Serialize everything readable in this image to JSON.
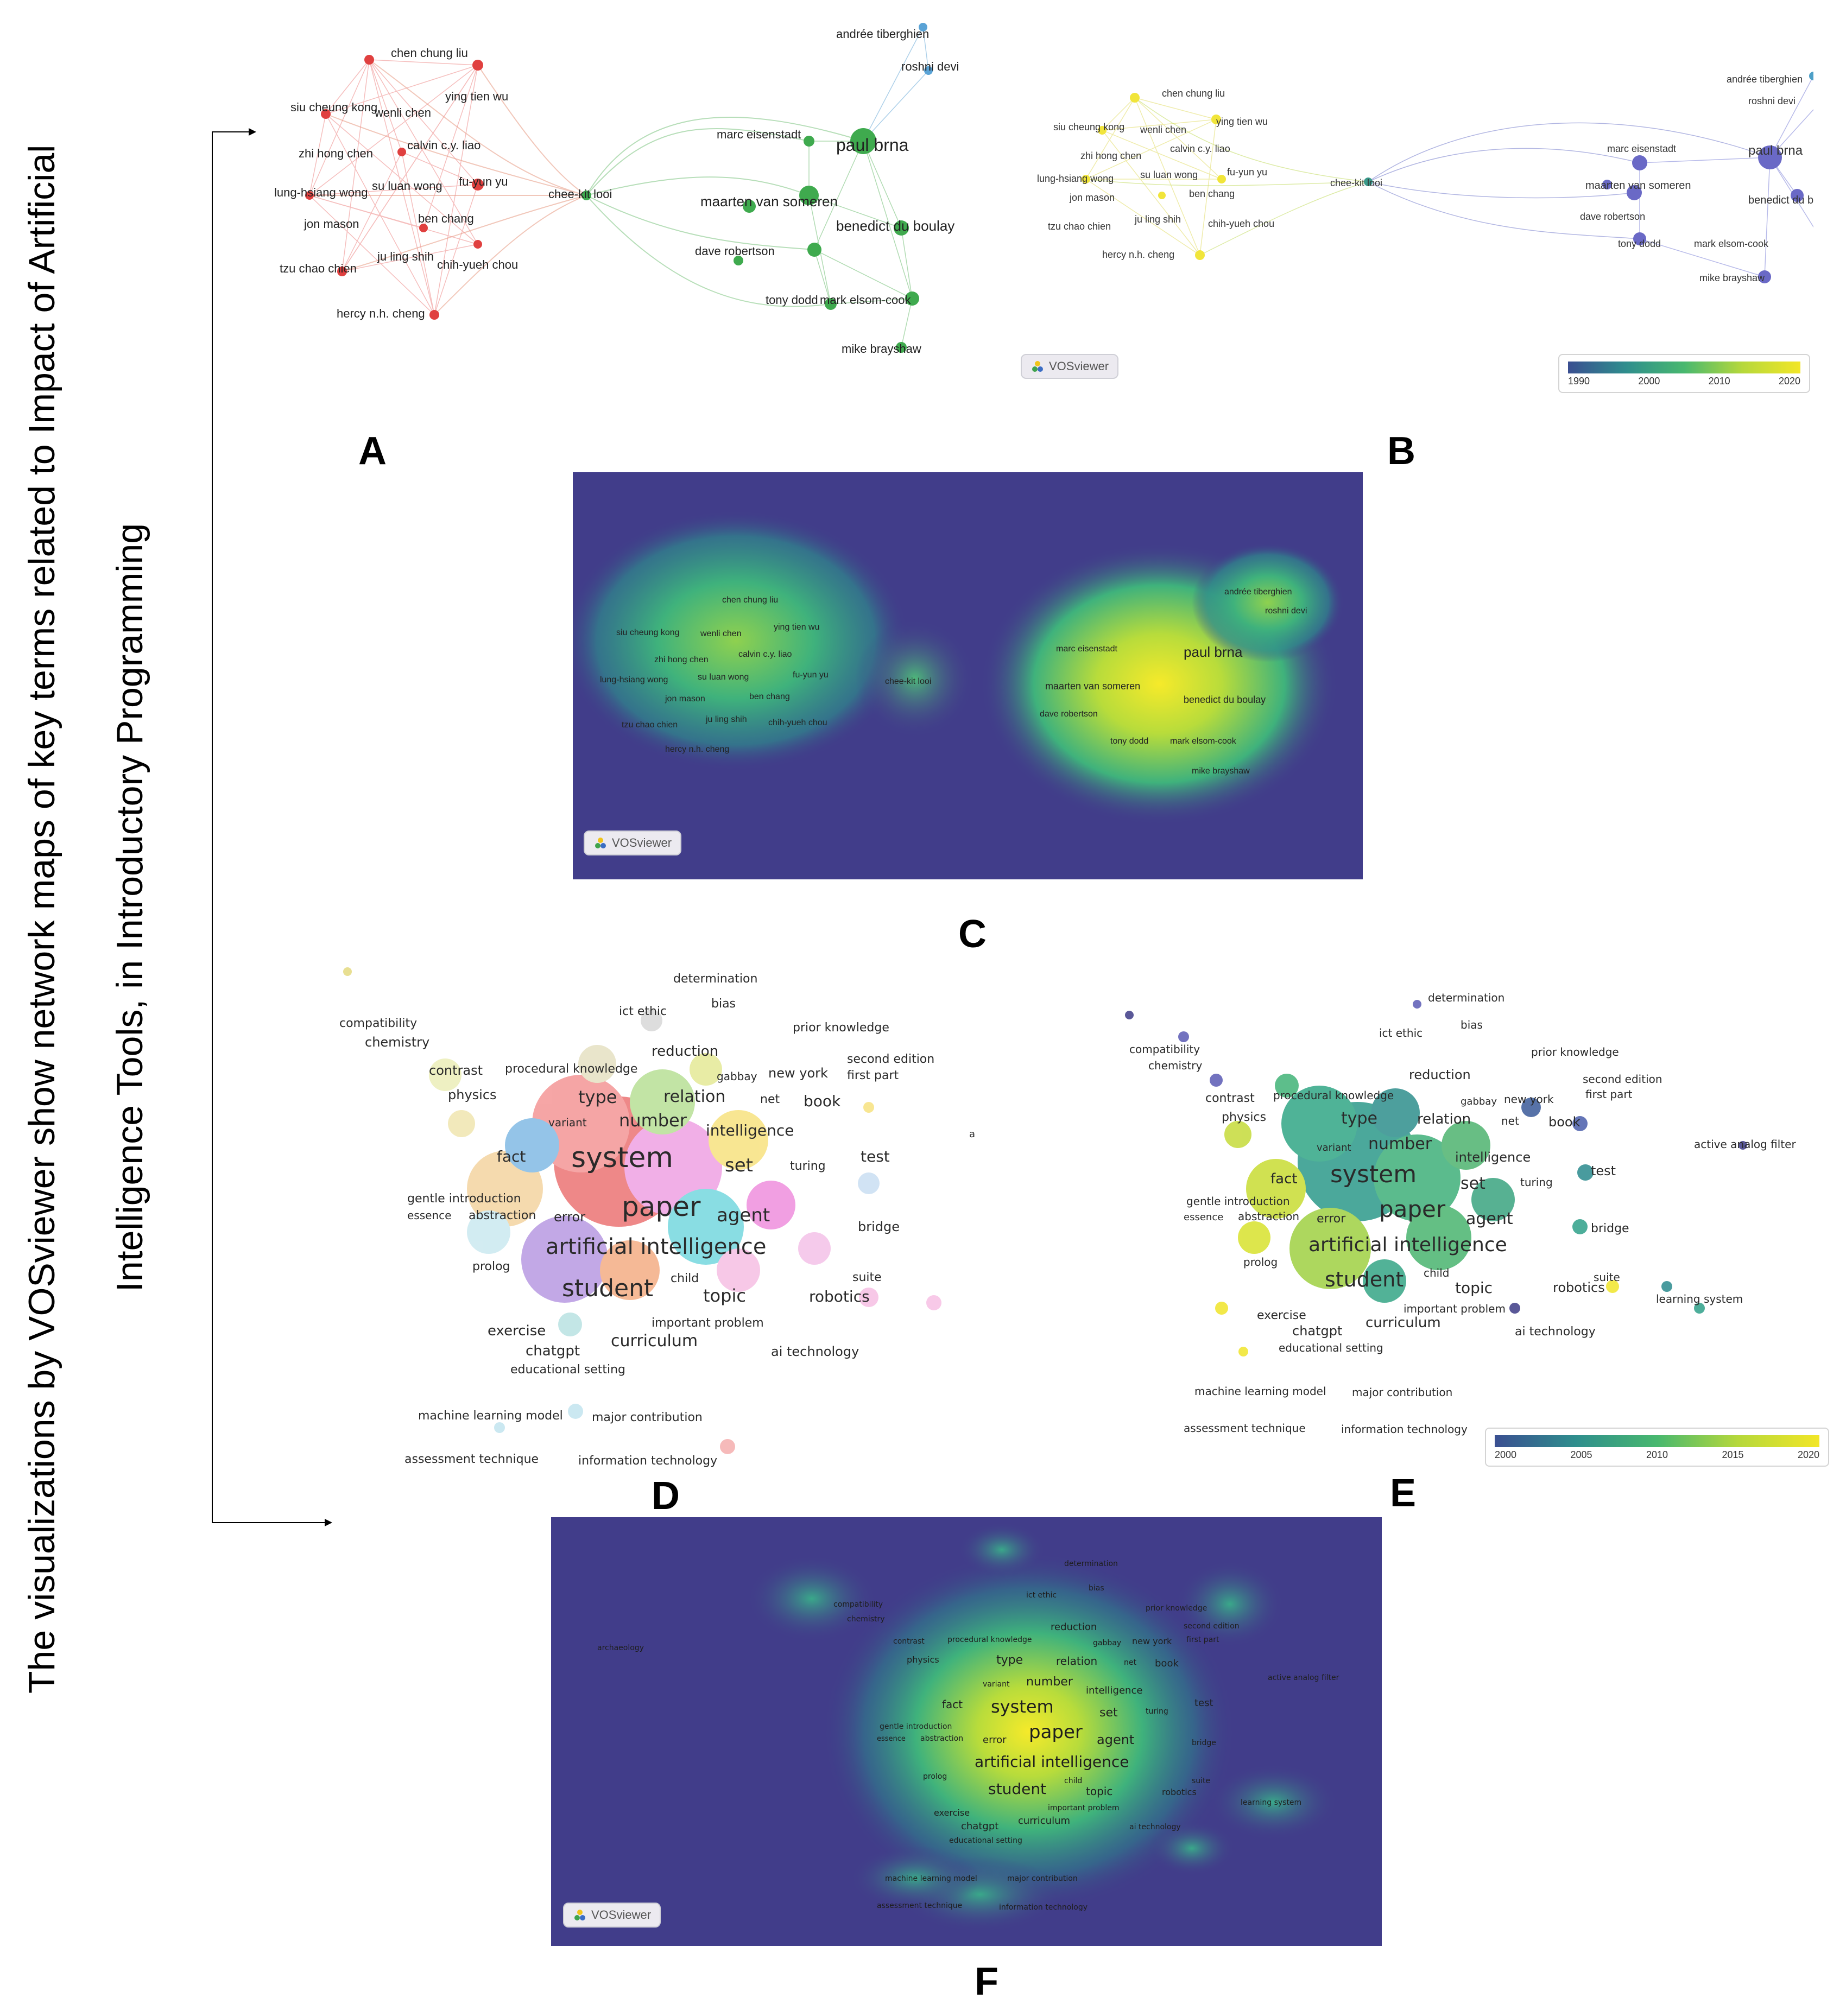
{
  "figure": {
    "title_line1": "The  visualizations by VOSviewer show network maps of key terms related to Impact of Artificial",
    "title_line2": "Intelligence Tools, in Introductory Programming"
  },
  "panel_labels": {
    "a": "A",
    "b": "B",
    "c": "C",
    "d": "D",
    "e": "E",
    "f": "F"
  },
  "vosviewer_badge": "VOSviewer",
  "colors": {
    "cluster_red": "#e8605f",
    "cluster_green": "#3faa4e",
    "cluster_blue": "#5aa3d6",
    "overlay_yellow": "#f2e627",
    "overlay_purple": "#6a69c6",
    "density_bg": "#413d8a"
  },
  "author_map": {
    "nodes": [
      "chen chung liu",
      "siu cheung kong",
      "wenli chen",
      "ying tien wu",
      "zhi hong chen",
      "calvin c.y. liao",
      "lung-hsiang wong",
      "su luan wong",
      "fu-yun yu",
      "jon mason",
      "ben chang",
      "tzu chao chien",
      "ju ling shih",
      "chih-yueh chou",
      "hercy n.h. cheng",
      "chee-kit looi",
      "marc eisenstadt",
      "paul brna",
      "maarten van someren",
      "benedict du boulay",
      "dave robertson",
      "tony dodd",
      "mark elsom-cook",
      "mike brayshaw",
      "andrée tiberghien",
      "roshni devi"
    ]
  },
  "overlay_b_legend": {
    "ticks": [
      "1990",
      "2000",
      "2010",
      "2020"
    ]
  },
  "overlay_e_legend": {
    "ticks": [
      "2000",
      "2005",
      "2010",
      "2015",
      "2020"
    ]
  },
  "term_map": {
    "terms": [
      "determination",
      "bias",
      "ict ethic",
      "compatibility",
      "chemistry",
      "prior knowledge",
      "reduction",
      "second edition",
      "first part",
      "contrast",
      "procedural knowledge",
      "gabbay",
      "new york",
      "physics",
      "type",
      "relation",
      "net",
      "book",
      "variant",
      "number",
      "intelligence",
      "a",
      "fact",
      "system",
      "set",
      "turing",
      "test",
      "gentle introduction",
      "essence",
      "abstraction",
      "error",
      "paper",
      "agent",
      "artificial intelligence",
      "bridge",
      "prolog",
      "student",
      "child",
      "topic",
      "suite",
      "robotics",
      "learning system",
      "exercise",
      "important problem",
      "chatgpt",
      "curriculum",
      "ai technology",
      "educational setting",
      "machine learning model",
      "major contribution",
      "assessment technique",
      "information technology",
      "active analog filter",
      "archaeology"
    ],
    "d_truncated_label": "learnin"
  }
}
